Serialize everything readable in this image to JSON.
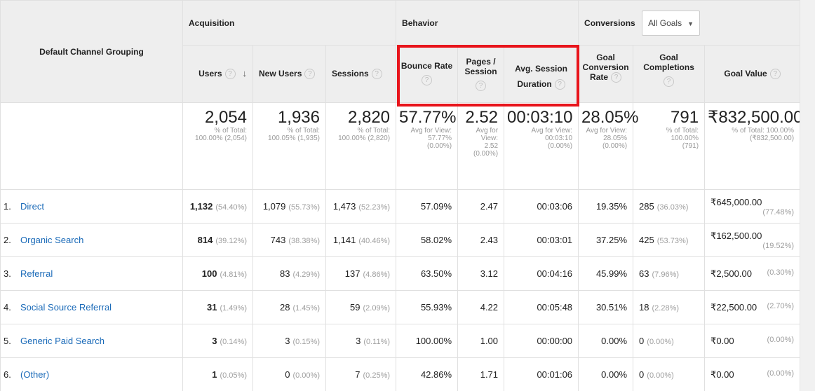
{
  "groups": {
    "acquisition": "Acquisition",
    "behavior": "Behavior",
    "conversions": "Conversions",
    "goals_select": "All Goals"
  },
  "columns": {
    "dimension": "Default Channel Grouping",
    "users": "Users",
    "new_users": "New Users",
    "sessions": "Sessions",
    "bounce_rate": "Bounce Rate",
    "pages_session_l1": "Pages /",
    "pages_session_l2": "Session",
    "avg_duration_l1": "Avg. Session",
    "avg_duration_l2": "Duration",
    "goal_conv_l1": "Goal",
    "goal_conv_l2": "Conversion",
    "goal_conv_l3": "Rate",
    "goal_comp_l1": "Goal",
    "goal_comp_l2": "Completions",
    "goal_value": "Goal Value",
    "help": "?",
    "sort": "↓",
    "caret": "▼"
  },
  "totals": {
    "users": {
      "main": "2,054",
      "s1": "% of Total:",
      "s2": "100.00% (2,054)"
    },
    "new_users": {
      "main": "1,936",
      "s1": "% of Total:",
      "s2": "100.05% (1,935)"
    },
    "sessions": {
      "main": "2,820",
      "s1": "% of Total:",
      "s2": "100.00% (2,820)"
    },
    "bounce_rate": {
      "main": "57.77%",
      "s1": "Avg for View:",
      "s2": "57.77%",
      "s3": "(0.00%)"
    },
    "pages_session": {
      "main": "2.52",
      "s1": "Avg for",
      "s2": "View:",
      "s3": "2.52",
      "s4": "(0.00%)"
    },
    "avg_duration": {
      "main": "00:03:10",
      "s1": "Avg for View:",
      "s2": "00:03:10",
      "s3": "(0.00%)"
    },
    "goal_conv": {
      "main": "28.05%",
      "s1": "Avg for View:",
      "s2": "28.05%",
      "s3": "(0.00%)"
    },
    "goal_comp": {
      "main": "791",
      "s1": "% of Total:",
      "s2": "100.00%",
      "s3": "(791)"
    },
    "goal_value": {
      "main": "₹832,500.00",
      "s1": "% of Total: 100.00%",
      "s2": "(₹832,500.00)"
    }
  },
  "rows": [
    {
      "idx": "1.",
      "name": "Direct",
      "users": "1,132",
      "users_pct": "(54.40%)",
      "new_users": "1,079",
      "new_users_pct": "(55.73%)",
      "sessions": "1,473",
      "sessions_pct": "(52.23%)",
      "bounce": "57.09%",
      "pages": "2.47",
      "duration": "00:03:06",
      "conv": "19.35%",
      "comp": "285",
      "comp_pct": "(36.03%)",
      "value": "₹645,000.00",
      "value_pct": "(77.48%)"
    },
    {
      "idx": "2.",
      "name": "Organic Search",
      "users": "814",
      "users_pct": "(39.12%)",
      "new_users": "743",
      "new_users_pct": "(38.38%)",
      "sessions": "1,141",
      "sessions_pct": "(40.46%)",
      "bounce": "58.02%",
      "pages": "2.43",
      "duration": "00:03:01",
      "conv": "37.25%",
      "comp": "425",
      "comp_pct": "(53.73%)",
      "value": "₹162,500.00",
      "value_pct": "(19.52%)"
    },
    {
      "idx": "3.",
      "name": "Referral",
      "users": "100",
      "users_pct": "(4.81%)",
      "new_users": "83",
      "new_users_pct": "(4.29%)",
      "sessions": "137",
      "sessions_pct": "(4.86%)",
      "bounce": "63.50%",
      "pages": "3.12",
      "duration": "00:04:16",
      "conv": "45.99%",
      "comp": "63",
      "comp_pct": "(7.96%)",
      "value": "₹2,500.00",
      "value_pct": "(0.30%)"
    },
    {
      "idx": "4.",
      "name": "Social Source Referral",
      "users": "31",
      "users_pct": "(1.49%)",
      "new_users": "28",
      "new_users_pct": "(1.45%)",
      "sessions": "59",
      "sessions_pct": "(2.09%)",
      "bounce": "55.93%",
      "pages": "4.22",
      "duration": "00:05:48",
      "conv": "30.51%",
      "comp": "18",
      "comp_pct": "(2.28%)",
      "value": "₹22,500.00",
      "value_pct": "(2.70%)"
    },
    {
      "idx": "5.",
      "name": "Generic Paid Search",
      "users": "3",
      "users_pct": "(0.14%)",
      "new_users": "3",
      "new_users_pct": "(0.15%)",
      "sessions": "3",
      "sessions_pct": "(0.11%)",
      "bounce": "100.00%",
      "pages": "1.00",
      "duration": "00:00:00",
      "conv": "0.00%",
      "comp": "0",
      "comp_pct": "(0.00%)",
      "value": "₹0.00",
      "value_pct": "(0.00%)"
    },
    {
      "idx": "6.",
      "name": "(Other)",
      "users": "1",
      "users_pct": "(0.05%)",
      "new_users": "0",
      "new_users_pct": "(0.00%)",
      "sessions": "7",
      "sessions_pct": "(0.25%)",
      "bounce": "42.86%",
      "pages": "1.71",
      "duration": "00:01:06",
      "conv": "0.00%",
      "comp": "0",
      "comp_pct": "(0.00%)",
      "value": "₹0.00",
      "value_pct": "(0.00%)"
    }
  ],
  "colors": {
    "highlight": "#e8141b",
    "link": "#1a6ab8",
    "header_bg": "#eeeeee"
  }
}
